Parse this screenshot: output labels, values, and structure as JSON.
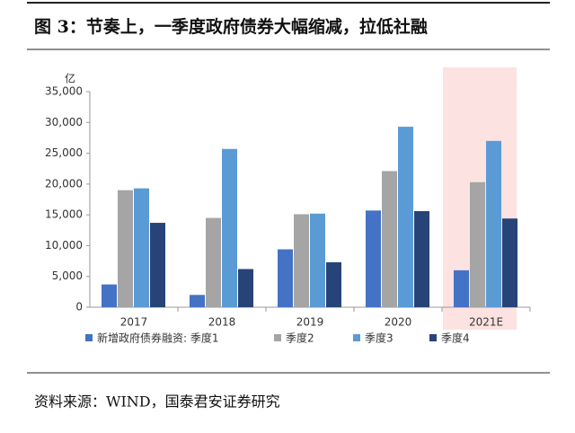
{
  "chart_data": {
    "type": "bar",
    "title": "图 3：节奏上，一季度政府债券大幅缩减，拉低社融",
    "y_label": "亿",
    "source": "资料来源：WIND，国泰君安证券研究",
    "categories": [
      "2017",
      "2018",
      "2019",
      "2020",
      "2021E"
    ],
    "series": [
      {
        "name": "新增政府债券融资: 季度1",
        "color": "#4472c4",
        "values": [
          3700,
          2000,
          9400,
          15700,
          6000
        ]
      },
      {
        "name": "季度2",
        "color": "#a5a5a5",
        "values": [
          19000,
          14500,
          15100,
          22100,
          20300
        ]
      },
      {
        "name": "季度3",
        "color": "#5b9bd5",
        "values": [
          19300,
          25700,
          15200,
          29300,
          27000
        ]
      },
      {
        "name": "季度4",
        "color": "#264478",
        "values": [
          13700,
          6200,
          7300,
          15600,
          14400
        ]
      }
    ],
    "ylim": [
      0,
      35000
    ],
    "yticks": [
      0,
      {
        "value": 5000,
        "label": "5,000"
      },
      {
        "value": 10000,
        "label": "10,000"
      },
      {
        "value": 15000,
        "label": "15,000"
      },
      {
        "value": 20000,
        "label": "20,000"
      },
      {
        "value": 25000,
        "label": "25,000"
      },
      {
        "value": 30000,
        "label": "30,000"
      },
      {
        "value": 35000,
        "label": "35,000"
      }
    ]
  }
}
